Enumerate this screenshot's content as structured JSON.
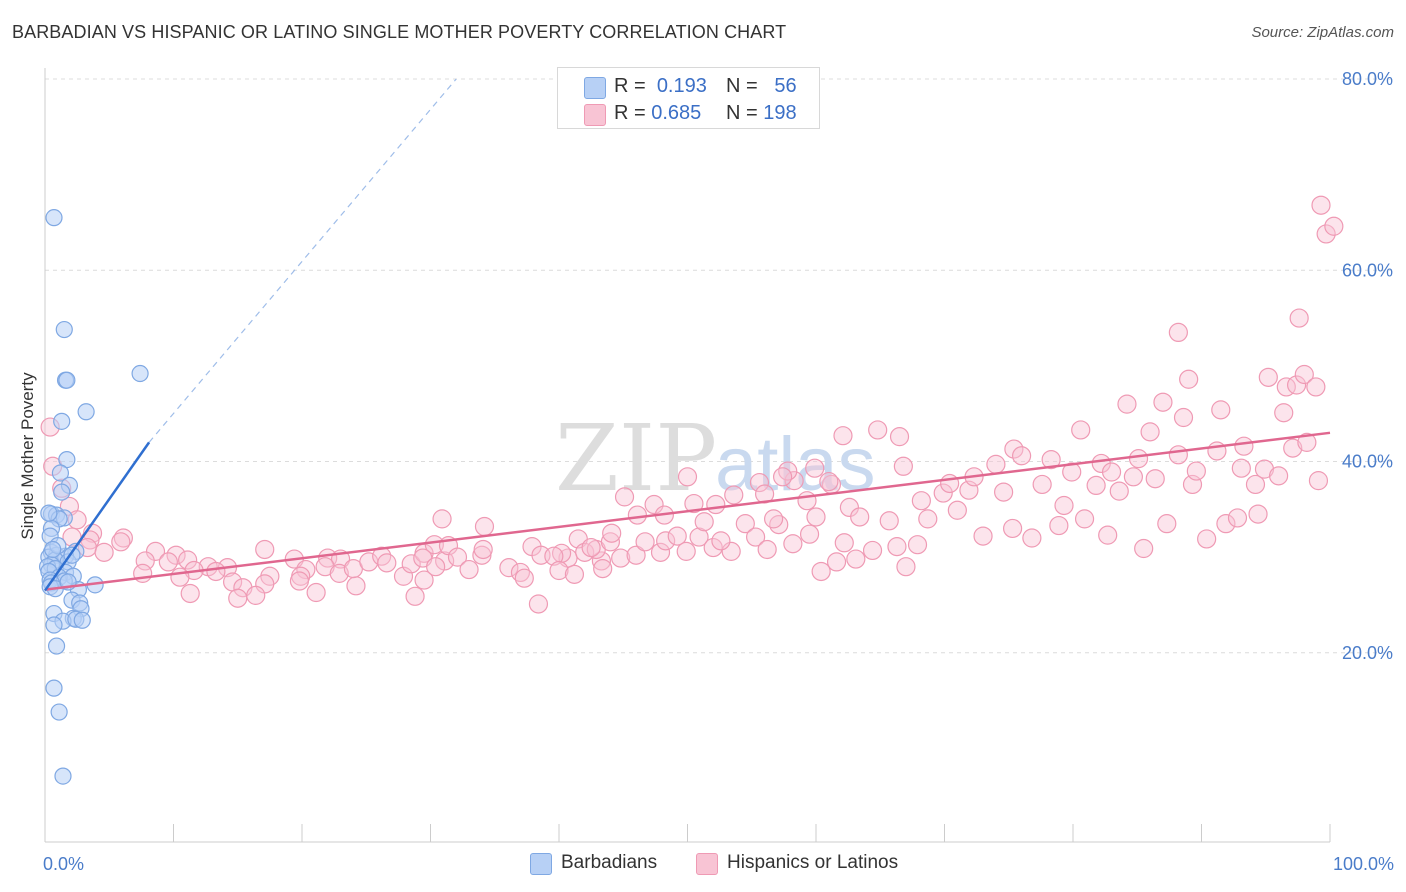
{
  "title": "BARBADIAN VS HISPANIC OR LATINO SINGLE MOTHER POVERTY CORRELATION CHART",
  "source": "Source: ZipAtlas.com",
  "watermark": {
    "zip": "ZIP",
    "atlas": "atlas"
  },
  "colors": {
    "blue_fill": "#b7d0f5",
    "blue_stroke": "#7fa8e3",
    "blue_line": "#2f6fd0",
    "pink_fill": "#f8c4d4",
    "pink_stroke": "#ef9ab4",
    "pink_line": "#e0678f",
    "tick_label": "#4a7cc9"
  },
  "legend_top": [
    {
      "r_label": "R =",
      "r_value": "0.193",
      "n_label": "N =",
      "n_value": "56",
      "swatch": "blue"
    },
    {
      "r_label": "R =",
      "r_value": "0.685",
      "n_label": "N =",
      "n_value": "198",
      "swatch": "pink"
    }
  ],
  "legend_bottom": [
    {
      "label": "Barbadians",
      "swatch": "blue"
    },
    {
      "label": "Hispanics or Latinos",
      "swatch": "pink"
    }
  ],
  "chart_data": {
    "type": "scatter",
    "title": "BARBADIAN VS HISPANIC OR LATINO SINGLE MOTHER POVERTY CORRELATION CHART",
    "xlabel": "",
    "ylabel": "Single Mother Poverty",
    "xlim": [
      0,
      100
    ],
    "ylim": [
      0,
      80
    ],
    "x_tick_labels": [
      "0.0%",
      "100.0%"
    ],
    "y_ticks": [
      20,
      40,
      60,
      80
    ],
    "y_tick_labels": [
      "20.0%",
      "40.0%",
      "60.0%",
      "80.0%"
    ],
    "grid": "horizontal dashed",
    "legend_position": "top-center",
    "series": [
      {
        "name": "Barbadians",
        "color": "#b7d0f5",
        "r": 0.193,
        "n": 56,
        "trend": {
          "x0": 0,
          "y0": 26.5,
          "x1": 8.1,
          "y1": 42.0,
          "dashed_to": [
            32,
            80
          ]
        },
        "points": [
          [
            0.7,
            65.5
          ],
          [
            1.5,
            53.8
          ],
          [
            1.6,
            48.5
          ],
          [
            1.7,
            48.5
          ],
          [
            7.4,
            49.2
          ],
          [
            3.2,
            45.2
          ],
          [
            1.3,
            44.2
          ],
          [
            1.7,
            40.2
          ],
          [
            1.2,
            38.8
          ],
          [
            1.9,
            37.5
          ],
          [
            1.3,
            36.8
          ],
          [
            0.5,
            34.5
          ],
          [
            0.9,
            34.4
          ],
          [
            1.5,
            34.1
          ],
          [
            1.1,
            34.0
          ],
          [
            0.5,
            33.0
          ],
          [
            0.4,
            32.2
          ],
          [
            2.4,
            30.6
          ],
          [
            0.5,
            30.5
          ],
          [
            0.9,
            30.2
          ],
          [
            0.3,
            30.0
          ],
          [
            1.6,
            30.1
          ],
          [
            0.8,
            29.7
          ],
          [
            1.8,
            29.5
          ],
          [
            0.5,
            29.2
          ],
          [
            0.2,
            29.0
          ],
          [
            0.8,
            28.8
          ],
          [
            0.3,
            28.5
          ],
          [
            1.6,
            28.4
          ],
          [
            2.2,
            28.0
          ],
          [
            1.1,
            27.9
          ],
          [
            0.4,
            27.6
          ],
          [
            1.5,
            27.5
          ],
          [
            0.5,
            27.3
          ],
          [
            3.9,
            27.1
          ],
          [
            0.4,
            26.9
          ],
          [
            0.8,
            26.7
          ],
          [
            2.6,
            26.6
          ],
          [
            2.1,
            25.5
          ],
          [
            2.7,
            25.2
          ],
          [
            2.8,
            24.6
          ],
          [
            0.7,
            24.1
          ],
          [
            2.2,
            23.6
          ],
          [
            1.4,
            23.3
          ],
          [
            2.4,
            23.5
          ],
          [
            0.7,
            22.9
          ],
          [
            0.9,
            20.7
          ],
          [
            0.7,
            16.3
          ],
          [
            1.1,
            13.8
          ],
          [
            1.4,
            7.1
          ],
          [
            2.1,
            30.2
          ],
          [
            1.0,
            31.2
          ],
          [
            0.6,
            30.8
          ],
          [
            1.8,
            27.4
          ],
          [
            0.3,
            34.6
          ],
          [
            2.9,
            23.4
          ]
        ]
      },
      {
        "name": "Hispanics or Latinos",
        "color": "#f8c4d4",
        "r": 0.685,
        "n": 198,
        "trend": {
          "x0": 0,
          "y0": 26.6,
          "x1": 100,
          "y1": 43.0
        },
        "points": [
          [
            0.4,
            43.6
          ],
          [
            0.6,
            39.5
          ],
          [
            1.3,
            37.2
          ],
          [
            1.9,
            35.3
          ],
          [
            2.5,
            33.9
          ],
          [
            3.7,
            32.5
          ],
          [
            2.1,
            32.1
          ],
          [
            6.1,
            32.0
          ],
          [
            3.5,
            31.8
          ],
          [
            5.9,
            31.6
          ],
          [
            3.3,
            31.0
          ],
          [
            8.6,
            30.6
          ],
          [
            4.6,
            30.5
          ],
          [
            10.2,
            30.2
          ],
          [
            11.1,
            29.7
          ],
          [
            7.8,
            29.6
          ],
          [
            9.6,
            29.5
          ],
          [
            12.7,
            29.0
          ],
          [
            14.2,
            28.9
          ],
          [
            11.6,
            28.6
          ],
          [
            13.3,
            28.5
          ],
          [
            7.6,
            28.3
          ],
          [
            17.5,
            28.0
          ],
          [
            10.5,
            27.9
          ],
          [
            14.6,
            27.4
          ],
          [
            17.1,
            27.2
          ],
          [
            15.4,
            26.8
          ],
          [
            11.3,
            26.2
          ],
          [
            16.4,
            26.0
          ],
          [
            15.0,
            25.7
          ],
          [
            21.1,
            26.3
          ],
          [
            17.1,
            30.8
          ],
          [
            19.4,
            29.8
          ],
          [
            20.3,
            28.7
          ],
          [
            19.9,
            28.0
          ],
          [
            19.8,
            27.5
          ],
          [
            22.0,
            29.9
          ],
          [
            23.0,
            29.8
          ],
          [
            21.8,
            29.0
          ],
          [
            22.9,
            28.3
          ],
          [
            24.2,
            27.0
          ],
          [
            24.0,
            28.8
          ],
          [
            25.2,
            29.5
          ],
          [
            26.2,
            30.1
          ],
          [
            26.6,
            29.4
          ],
          [
            27.9,
            28.0
          ],
          [
            28.5,
            29.3
          ],
          [
            29.5,
            30.4
          ],
          [
            28.8,
            25.9
          ],
          [
            30.3,
            31.3
          ],
          [
            31.1,
            29.6
          ],
          [
            31.4,
            31.2
          ],
          [
            29.5,
            27.6
          ],
          [
            29.4,
            29.9
          ],
          [
            32.1,
            30.0
          ],
          [
            33.0,
            28.7
          ],
          [
            34.0,
            30.2
          ],
          [
            34.1,
            30.8
          ],
          [
            34.2,
            33.2
          ],
          [
            30.4,
            29.0
          ],
          [
            36.1,
            28.9
          ],
          [
            30.9,
            34.0
          ],
          [
            37.0,
            28.4
          ],
          [
            37.9,
            31.1
          ],
          [
            38.6,
            30.2
          ],
          [
            40.7,
            29.9
          ],
          [
            40.2,
            30.4
          ],
          [
            41.5,
            31.9
          ],
          [
            42.0,
            30.5
          ],
          [
            43.3,
            29.6
          ],
          [
            42.9,
            30.8
          ],
          [
            44.0,
            31.6
          ],
          [
            44.8,
            29.9
          ],
          [
            37.3,
            27.8
          ],
          [
            38.4,
            25.1
          ],
          [
            39.6,
            30.1
          ],
          [
            40.0,
            28.6
          ],
          [
            41.2,
            28.2
          ],
          [
            43.4,
            28.8
          ],
          [
            44.1,
            32.5
          ],
          [
            42.5,
            31.0
          ],
          [
            46.0,
            30.2
          ],
          [
            46.7,
            31.6
          ],
          [
            47.9,
            30.5
          ],
          [
            48.3,
            31.7
          ],
          [
            49.2,
            32.2
          ],
          [
            49.9,
            30.6
          ],
          [
            50.9,
            32.1
          ],
          [
            51.3,
            33.7
          ],
          [
            52.0,
            31.0
          ],
          [
            53.4,
            30.6
          ],
          [
            54.5,
            33.5
          ],
          [
            55.3,
            32.1
          ],
          [
            56.2,
            30.8
          ],
          [
            57.1,
            33.4
          ],
          [
            58.2,
            31.4
          ],
          [
            59.5,
            32.4
          ],
          [
            60.4,
            28.5
          ],
          [
            56.7,
            34.0
          ],
          [
            60.0,
            34.2
          ],
          [
            61.6,
            29.5
          ],
          [
            62.2,
            31.5
          ],
          [
            63.1,
            29.8
          ],
          [
            64.4,
            30.7
          ],
          [
            65.7,
            33.8
          ],
          [
            66.3,
            31.1
          ],
          [
            67.0,
            29.0
          ],
          [
            67.9,
            31.3
          ],
          [
            68.7,
            34.0
          ],
          [
            69.9,
            36.7
          ],
          [
            71.0,
            34.9
          ],
          [
            71.9,
            37.0
          ],
          [
            73.0,
            32.2
          ],
          [
            74.6,
            36.8
          ],
          [
            75.3,
            33.0
          ],
          [
            76.8,
            32.0
          ],
          [
            77.6,
            37.6
          ],
          [
            78.9,
            33.3
          ],
          [
            79.9,
            38.9
          ],
          [
            80.9,
            34.0
          ],
          [
            81.8,
            37.5
          ],
          [
            82.7,
            32.3
          ],
          [
            83.6,
            36.9
          ],
          [
            84.7,
            38.4
          ],
          [
            85.5,
            30.9
          ],
          [
            86.4,
            38.2
          ],
          [
            87.3,
            33.5
          ],
          [
            88.2,
            40.7
          ],
          [
            89.3,
            37.6
          ],
          [
            90.4,
            31.9
          ],
          [
            91.2,
            41.1
          ],
          [
            91.9,
            33.5
          ],
          [
            93.1,
            39.3
          ],
          [
            94.2,
            37.6
          ],
          [
            94.9,
            39.2
          ],
          [
            96.0,
            38.5
          ],
          [
            97.1,
            41.4
          ],
          [
            98.2,
            42.0
          ],
          [
            99.1,
            38.0
          ],
          [
            59.9,
            39.3
          ],
          [
            58.3,
            38.0
          ],
          [
            50.0,
            38.4
          ],
          [
            57.8,
            39.0
          ],
          [
            45.1,
            36.3
          ],
          [
            46.1,
            34.4
          ],
          [
            47.4,
            35.5
          ],
          [
            48.2,
            34.4
          ],
          [
            50.5,
            35.6
          ],
          [
            52.6,
            31.7
          ],
          [
            53.6,
            36.5
          ],
          [
            55.6,
            37.8
          ],
          [
            59.3,
            35.9
          ],
          [
            61.2,
            37.6
          ],
          [
            62.6,
            35.2
          ],
          [
            63.4,
            34.2
          ],
          [
            66.8,
            39.5
          ],
          [
            68.2,
            35.9
          ],
          [
            70.4,
            37.7
          ],
          [
            72.3,
            38.4
          ],
          [
            74.0,
            39.7
          ],
          [
            75.4,
            41.3
          ],
          [
            76.0,
            40.6
          ],
          [
            78.3,
            40.2
          ],
          [
            79.3,
            35.4
          ],
          [
            80.6,
            43.3
          ],
          [
            82.2,
            39.8
          ],
          [
            83.0,
            38.9
          ],
          [
            84.2,
            46.0
          ],
          [
            85.1,
            40.3
          ],
          [
            86.0,
            43.1
          ],
          [
            87.0,
            46.2
          ],
          [
            88.6,
            44.6
          ],
          [
            89.6,
            39.0
          ],
          [
            91.5,
            45.4
          ],
          [
            92.8,
            34.1
          ],
          [
            94.4,
            34.5
          ],
          [
            95.2,
            48.8
          ],
          [
            96.4,
            45.1
          ],
          [
            96.6,
            47.8
          ],
          [
            97.4,
            48.0
          ],
          [
            98.0,
            49.1
          ],
          [
            98.9,
            47.8
          ],
          [
            97.6,
            55.0
          ],
          [
            99.3,
            66.8
          ],
          [
            99.7,
            63.8
          ],
          [
            100.3,
            64.6
          ],
          [
            88.2,
            53.5
          ],
          [
            89.0,
            48.6
          ],
          [
            93.3,
            41.6
          ],
          [
            62.1,
            42.7
          ],
          [
            64.8,
            43.3
          ],
          [
            66.5,
            42.6
          ],
          [
            56.0,
            36.6
          ],
          [
            52.2,
            35.5
          ],
          [
            57.4,
            38.4
          ],
          [
            61.0,
            37.9
          ]
        ]
      }
    ]
  }
}
